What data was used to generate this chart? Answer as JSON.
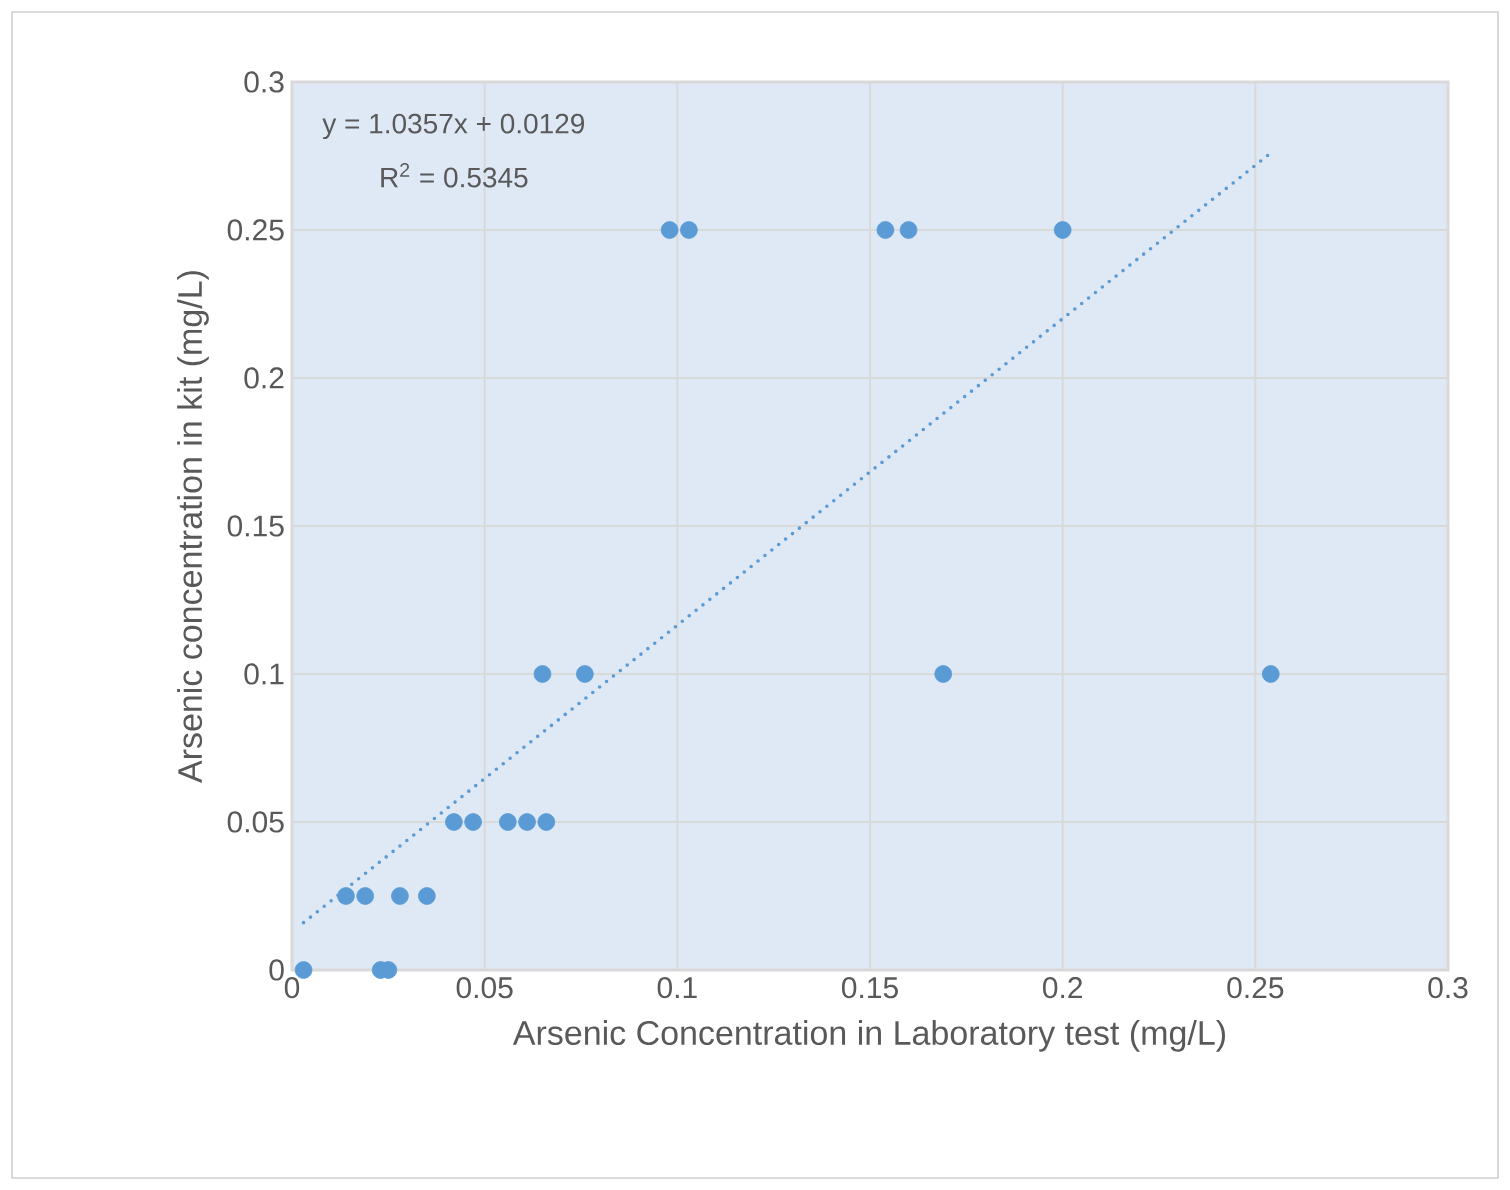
{
  "chart_data": {
    "type": "scatter",
    "xlabel": "Arsenic Concentration in Laboratory test (mg/L)",
    "ylabel": "Arsenic concentration in kit (mg/L)",
    "annotations": [
      "y = 1.0357x + 0.0129",
      "R$^{2}$ = 0.5345"
    ],
    "xlim": [
      0,
      0.3
    ],
    "xticks": [
      0,
      0.05,
      0.1,
      0.15,
      0.2,
      0.25,
      0.3
    ],
    "ylim": [
      0,
      0.3
    ],
    "yticks": [
      0,
      0.05,
      0.1,
      0.15,
      0.2,
      0.25,
      0.3
    ],
    "grid": true,
    "marker": "circle",
    "series": [
      {
        "type": "scatter",
        "color": "#5b9bd5",
        "x": [
          0.003,
          0.023,
          0.025,
          0.014,
          0.019,
          0.028,
          0.035,
          0.042,
          0.047,
          0.056,
          0.061,
          0.066,
          0.065,
          0.076,
          0.169,
          0.254,
          0.098,
          0.103,
          0.154,
          0.16,
          0.2
        ],
        "values": [
          0,
          0,
          0,
          0.025,
          0.025,
          0.025,
          0.025,
          0.05,
          0.05,
          0.05,
          0.05,
          0.05,
          0.1,
          0.1,
          0.1,
          0.1,
          0.25,
          0.25,
          0.25,
          0.25,
          0.25
        ]
      },
      {
        "type": "line",
        "color": "#5b9bd5",
        "marker": "none",
        "line_style": "dotted",
        "x": [
          0.003,
          0.254
        ],
        "values": [
          0.016,
          0.276
        ]
      }
    ]
  }
}
